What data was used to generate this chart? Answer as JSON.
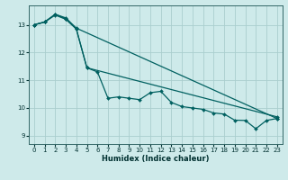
{
  "xlabel": "Humidex (Indice chaleur)",
  "bg_color": "#ceeaea",
  "grid_color": "#aacece",
  "line_color": "#006060",
  "xlim": [
    -0.5,
    23.5
  ],
  "ylim": [
    8.7,
    13.7
  ],
  "xticks": [
    0,
    1,
    2,
    3,
    4,
    5,
    6,
    7,
    8,
    9,
    10,
    11,
    12,
    13,
    14,
    15,
    16,
    17,
    18,
    19,
    20,
    21,
    22,
    23
  ],
  "yticks": [
    9,
    10,
    11,
    12,
    13
  ],
  "line_zigzag": {
    "x": [
      0,
      1,
      2,
      3,
      4,
      5,
      6,
      7,
      8,
      9,
      10,
      11,
      12,
      13,
      14,
      15,
      16,
      17,
      18,
      19,
      20,
      21,
      22,
      23
    ],
    "y": [
      13.0,
      13.1,
      13.35,
      13.2,
      12.85,
      11.45,
      11.3,
      10.35,
      10.4,
      10.35,
      10.3,
      10.55,
      10.6,
      10.2,
      10.05,
      10.0,
      9.95,
      9.82,
      9.78,
      9.56,
      9.55,
      9.25,
      9.55,
      9.62
    ]
  },
  "line_smooth1": {
    "x": [
      0,
      1,
      2,
      3,
      4,
      23
    ],
    "y": [
      13.0,
      13.1,
      13.38,
      13.25,
      12.88,
      9.62
    ]
  },
  "line_smooth2": {
    "x": [
      0,
      1,
      2,
      3,
      4,
      5,
      23
    ],
    "y": [
      13.0,
      13.1,
      13.38,
      13.22,
      12.85,
      11.45,
      9.68
    ]
  }
}
